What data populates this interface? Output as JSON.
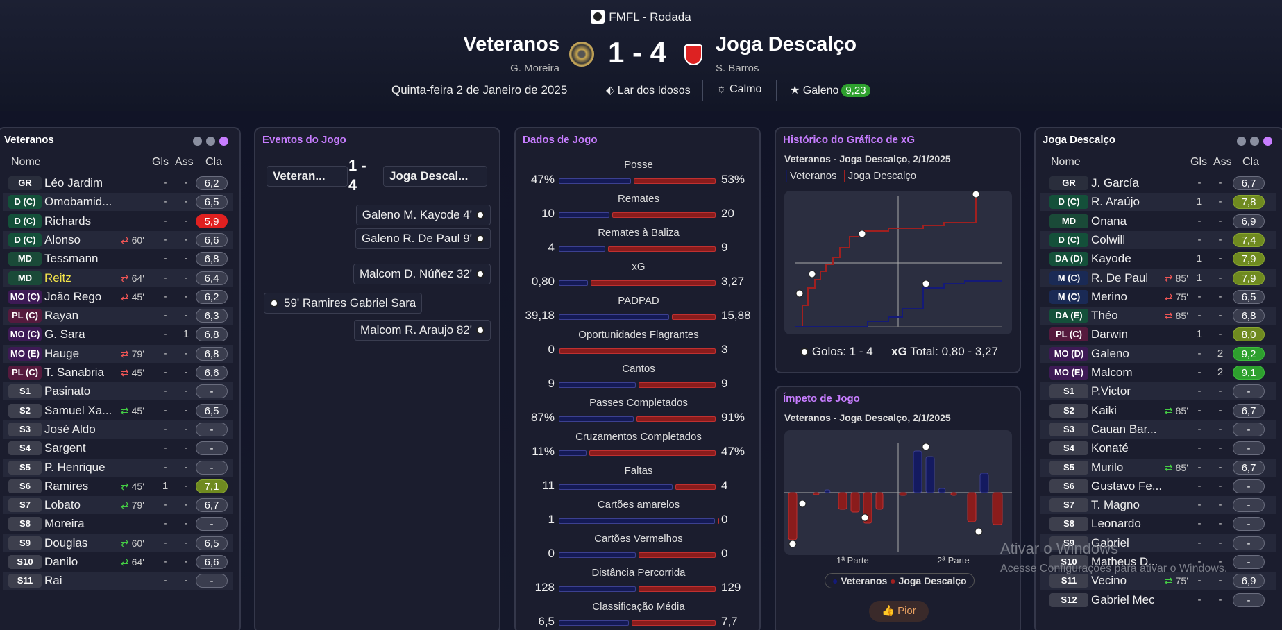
{
  "header": {
    "competition": "FMFL - Rodada",
    "home_team": "Veteranos",
    "home_manager": "G. Moreira",
    "score": "1 - 4",
    "away_team": "Joga Descalço",
    "away_manager": "S. Barros",
    "date": "Quinta-feira 2 de Janeiro de 2025",
    "venue": "Lar dos Idosos",
    "weather": "Calmo",
    "motm_name": "Galeno",
    "motm_rating": "9,23",
    "colors": {
      "accent": "#c77dff",
      "green": "#2ea02e",
      "red": "#e02020",
      "home": "#141a55",
      "away": "#8a1c1c"
    }
  },
  "home_panel": {
    "title": "Veteranos",
    "cols": {
      "name": "Nome",
      "gls": "Gls",
      "ass": "Ass",
      "cla": "Cla"
    },
    "players": [
      {
        "pos": "GR",
        "name": "Léo Jardim",
        "sub": "",
        "gls": "-",
        "ass": "-",
        "cla": "6,2"
      },
      {
        "pos": "D (C)",
        "name": "Omobamid...",
        "sub": "",
        "gls": "-",
        "ass": "-",
        "cla": "6,5"
      },
      {
        "pos": "D (C)",
        "name": "Richards",
        "sub": "",
        "gls": "-",
        "ass": "-",
        "cla": "5,9"
      },
      {
        "pos": "D (C)",
        "name": "Alonso",
        "sub": "60'",
        "gls": "-",
        "ass": "-",
        "cla": "6,6"
      },
      {
        "pos": "MD",
        "name": "Tessmann",
        "sub": "",
        "gls": "-",
        "ass": "-",
        "cla": "6,8"
      },
      {
        "pos": "MD",
        "name": "Reitz",
        "sub": "64'",
        "gls": "-",
        "ass": "-",
        "cla": "6,4"
      },
      {
        "pos": "MO (C)",
        "name": "João Rego",
        "sub": "45'",
        "gls": "-",
        "ass": "-",
        "cla": "6,2"
      },
      {
        "pos": "PL (C)",
        "name": "Rayan",
        "sub": "",
        "gls": "-",
        "ass": "-",
        "cla": "6,3"
      },
      {
        "pos": "MO (C)",
        "name": "G. Sara",
        "sub": "",
        "gls": "-",
        "ass": "1",
        "cla": "6,8"
      },
      {
        "pos": "MO (E)",
        "name": "Hauge",
        "sub": "79'",
        "gls": "-",
        "ass": "-",
        "cla": "6,8"
      },
      {
        "pos": "PL (C)",
        "name": "T. Sanabria",
        "sub": "45'",
        "gls": "-",
        "ass": "-",
        "cla": "6,6"
      },
      {
        "pos": "S1",
        "name": "Pasinato",
        "sub": "",
        "gls": "-",
        "ass": "-",
        "cla": "-"
      },
      {
        "pos": "S2",
        "name": "Samuel Xa...",
        "sub": "45'",
        "gls": "-",
        "ass": "-",
        "cla": "6,5"
      },
      {
        "pos": "S3",
        "name": "José Aldo",
        "sub": "",
        "gls": "-",
        "ass": "-",
        "cla": "-"
      },
      {
        "pos": "S4",
        "name": "Sargent",
        "sub": "",
        "gls": "-",
        "ass": "-",
        "cla": "-"
      },
      {
        "pos": "S5",
        "name": "P. Henrique",
        "sub": "",
        "gls": "-",
        "ass": "-",
        "cla": "-"
      },
      {
        "pos": "S6",
        "name": "Ramires",
        "sub": "45'",
        "gls": "1",
        "ass": "-",
        "cla": "7,1"
      },
      {
        "pos": "S7",
        "name": "Lobato",
        "sub": "79'",
        "gls": "-",
        "ass": "-",
        "cla": "6,7"
      },
      {
        "pos": "S8",
        "name": "Moreira",
        "sub": "",
        "gls": "-",
        "ass": "-",
        "cla": "-"
      },
      {
        "pos": "S9",
        "name": "Douglas",
        "sub": "60'",
        "gls": "-",
        "ass": "-",
        "cla": "6,5"
      },
      {
        "pos": "S10",
        "name": "Danilo",
        "sub": "64'",
        "gls": "-",
        "ass": "-",
        "cla": "6,6"
      },
      {
        "pos": "S11",
        "name": "Rai",
        "sub": "",
        "gls": "-",
        "ass": "-",
        "cla": "-"
      }
    ]
  },
  "events_panel": {
    "title": "Eventos do Jogo",
    "home_short": "Veteran...",
    "score": "1 - 4",
    "away_short": "Joga Descal...",
    "events": [
      {
        "side": "away",
        "text": "Galeno  M. Kayode 4'"
      },
      {
        "side": "away",
        "text": "Galeno  R. De Paul 9'"
      },
      {
        "side": "away",
        "text": "Malcom  D. Núñez 32'"
      },
      {
        "side": "home",
        "text": "59' Ramires Gabriel Sara"
      },
      {
        "side": "away",
        "text": "Malcom  R. Araujo 82'"
      }
    ]
  },
  "stats_panel": {
    "title": "Dados de Jogo",
    "stats": [
      {
        "label": "Posse",
        "home": "47%",
        "away": "53%",
        "h": 47,
        "a": 53
      },
      {
        "label": "Remates",
        "home": "10",
        "away": "20",
        "h": 10,
        "a": 20
      },
      {
        "label": "Remates à Baliza",
        "home": "4",
        "away": "9",
        "h": 4,
        "a": 9
      },
      {
        "label": "xG",
        "home": "0,80",
        "away": "3,27",
        "h": 0.8,
        "a": 3.27
      },
      {
        "label": "PADPAD",
        "home": "39,18",
        "away": "15,88",
        "h": 39.18,
        "a": 15.88
      },
      {
        "label": "Oportunidades Flagrantes",
        "home": "0",
        "away": "3",
        "h": 0,
        "a": 3
      },
      {
        "label": "Cantos",
        "home": "9",
        "away": "9",
        "h": 9,
        "a": 9
      },
      {
        "label": "Passes Completados",
        "home": "87%",
        "away": "91%",
        "h": 87,
        "a": 91
      },
      {
        "label": "Cruzamentos Completados",
        "home": "11%",
        "away": "47%",
        "h": 11,
        "a": 47
      },
      {
        "label": "Faltas",
        "home": "11",
        "away": "4",
        "h": 11,
        "a": 4
      },
      {
        "label": "Cartões amarelos",
        "home": "1",
        "away": "0",
        "h": 1,
        "a": 0
      },
      {
        "label": "Cartões Vermelhos",
        "home": "0",
        "away": "0",
        "h": 0,
        "a": 0
      },
      {
        "label": "Distância Percorrida",
        "home": "128",
        "away": "129",
        "h": 128,
        "a": 129
      },
      {
        "label": "Classificação Média",
        "home": "6,5",
        "away": "7,7",
        "h": 6.5,
        "a": 7.7
      }
    ]
  },
  "xg_panel": {
    "title": "Histórico do Gráfico de xG",
    "subtitle": "Veteranos - Joga Descalço, 2/1/2025",
    "legend_home": "Veteranos",
    "legend_away": "Joga Descalço",
    "goals_label": "Golos: 1 - 4",
    "xg_label": "xG",
    "xg_total": "Total: 0,80 - 3,27"
  },
  "momentum_panel": {
    "title": "Ímpeto de Jogo",
    "subtitle": "Veteranos - Joga Descalço, 2/1/2025",
    "half1": "1ª Parte",
    "half2": "2ª Parte",
    "legend_home": "Veteranos",
    "legend_away": "Joga Descalço",
    "button": "Pior"
  },
  "away_panel": {
    "title": "Joga Descalço",
    "cols": {
      "name": "Nome",
      "gls": "Gls",
      "ass": "Ass",
      "cla": "Cla"
    },
    "players": [
      {
        "pos": "GR",
        "name": "J. García",
        "sub": "",
        "gls": "-",
        "ass": "-",
        "cla": "6,7"
      },
      {
        "pos": "D (C)",
        "name": "R. Araújo",
        "sub": "",
        "gls": "1",
        "ass": "-",
        "cla": "7,8"
      },
      {
        "pos": "MD",
        "name": "Onana",
        "sub": "",
        "gls": "-",
        "ass": "-",
        "cla": "6,9"
      },
      {
        "pos": "D (C)",
        "name": "Colwill",
        "sub": "",
        "gls": "-",
        "ass": "-",
        "cla": "7,4"
      },
      {
        "pos": "DA (D)",
        "name": "Kayode",
        "sub": "",
        "gls": "1",
        "ass": "-",
        "cla": "7,9"
      },
      {
        "pos": "M (C)",
        "name": "R. De Paul",
        "sub": "85'",
        "gls": "1",
        "ass": "-",
        "cla": "7,9"
      },
      {
        "pos": "M (C)",
        "name": "Merino",
        "sub": "75'",
        "gls": "-",
        "ass": "-",
        "cla": "6,5"
      },
      {
        "pos": "DA (E)",
        "name": "Théo",
        "sub": "85'",
        "gls": "-",
        "ass": "-",
        "cla": "6,8"
      },
      {
        "pos": "PL (C)",
        "name": "Darwin",
        "sub": "",
        "gls": "1",
        "ass": "-",
        "cla": "8,0"
      },
      {
        "pos": "MO (D)",
        "name": "Galeno",
        "sub": "",
        "gls": "-",
        "ass": "2",
        "cla": "9,2"
      },
      {
        "pos": "MO (E)",
        "name": "Malcom",
        "sub": "",
        "gls": "-",
        "ass": "2",
        "cla": "9,1"
      },
      {
        "pos": "S1",
        "name": "P.Victor",
        "sub": "",
        "gls": "-",
        "ass": "-",
        "cla": "-"
      },
      {
        "pos": "S2",
        "name": "Kaiki",
        "sub": "85'",
        "gls": "-",
        "ass": "-",
        "cla": "6,7"
      },
      {
        "pos": "S3",
        "name": "Cauan Bar...",
        "sub": "",
        "gls": "-",
        "ass": "-",
        "cla": "-"
      },
      {
        "pos": "S4",
        "name": "Konaté",
        "sub": "",
        "gls": "-",
        "ass": "-",
        "cla": "-"
      },
      {
        "pos": "S5",
        "name": "Murilo",
        "sub": "85'",
        "gls": "-",
        "ass": "-",
        "cla": "6,7"
      },
      {
        "pos": "S6",
        "name": "Gustavo Fe...",
        "sub": "",
        "gls": "-",
        "ass": "-",
        "cla": "-"
      },
      {
        "pos": "S7",
        "name": "T. Magno",
        "sub": "",
        "gls": "-",
        "ass": "-",
        "cla": "-"
      },
      {
        "pos": "S8",
        "name": "Leonardo",
        "sub": "",
        "gls": "-",
        "ass": "-",
        "cla": "-"
      },
      {
        "pos": "S9",
        "name": "Gabriel",
        "sub": "",
        "gls": "-",
        "ass": "-",
        "cla": "-"
      },
      {
        "pos": "S10",
        "name": "Matheus D...",
        "sub": "",
        "gls": "-",
        "ass": "-",
        "cla": "-"
      },
      {
        "pos": "S11",
        "name": "Vecino",
        "sub": "75'",
        "gls": "-",
        "ass": "-",
        "cla": "6,9"
      },
      {
        "pos": "S12",
        "name": "Gabriel Mec",
        "sub": "",
        "gls": "-",
        "ass": "-",
        "cla": "-"
      }
    ]
  },
  "watermark": {
    "line1": "Ativar o Windows",
    "line2": "Acesse Configurações para ativar o Windows."
  }
}
